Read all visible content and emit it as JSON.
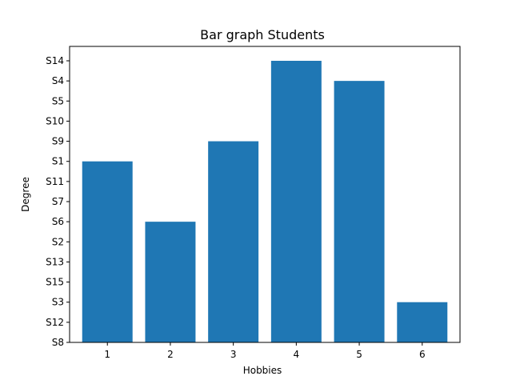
{
  "chart_data": {
    "type": "bar",
    "title": "Bar graph Students",
    "xlabel": "Hobbies",
    "ylabel": "Degree",
    "categories": [
      "1",
      "2",
      "3",
      "4",
      "5",
      "6"
    ],
    "values": [
      "S1",
      "S6",
      "S9",
      "S14",
      "S4",
      "S3"
    ],
    "y_categories": [
      "S8",
      "S12",
      "S3",
      "S15",
      "S13",
      "S2",
      "S6",
      "S7",
      "S11",
      "S1",
      "S9",
      "S10",
      "S5",
      "S4",
      "S14"
    ],
    "bar_color": "#1f77b4",
    "grid": false,
    "legend": "none"
  }
}
